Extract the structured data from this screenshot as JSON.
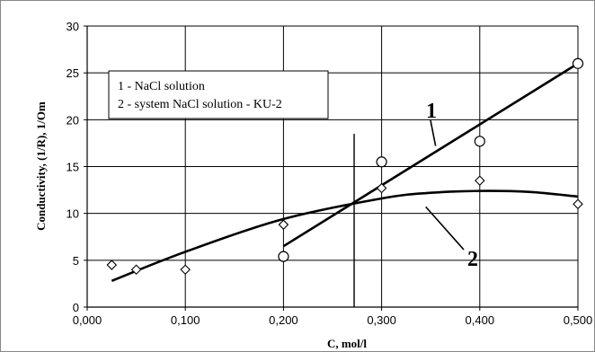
{
  "chart_data": {
    "type": "scatter",
    "title": "",
    "xlabel": "C, mol/l",
    "ylabel": "Conductivity, (1/R), 1/Om",
    "xlim": [
      0,
      0.5
    ],
    "ylim": [
      0,
      30
    ],
    "x_ticks": [
      "0,000",
      "0,100",
      "0,200",
      "0,300",
      "0,400",
      "0,500"
    ],
    "y_ticks": [
      "0",
      "5",
      "10",
      "15",
      "20",
      "25",
      "30"
    ],
    "grid": true,
    "legend_placement": "top-left",
    "legend": [
      "1 - NaCl solution",
      "2 - system NaCl solution - KU-2"
    ],
    "series": [
      {
        "name": "1 - NaCl solution",
        "marker": "circle",
        "points": [
          [
            0.2,
            5.4
          ],
          [
            0.3,
            15.5
          ],
          [
            0.4,
            17.7
          ],
          [
            0.5,
            26.0
          ]
        ],
        "fit": {
          "type": "linear",
          "from": [
            0.2,
            6.5
          ],
          "to": [
            0.5,
            26.0
          ]
        }
      },
      {
        "name": "2 - system NaCl solution - KU-2",
        "marker": "diamond",
        "points": [
          [
            0.025,
            4.5
          ],
          [
            0.05,
            4.0
          ],
          [
            0.1,
            4.0
          ],
          [
            0.2,
            8.8
          ],
          [
            0.3,
            12.7
          ],
          [
            0.4,
            13.5
          ],
          [
            0.5,
            11.0
          ]
        ],
        "fit": {
          "type": "polynomial",
          "curve": [
            [
              0.025,
              2.8
            ],
            [
              0.1,
              5.9
            ],
            [
              0.2,
              9.4
            ],
            [
              0.3,
              11.6
            ],
            [
              0.35,
              12.2
            ],
            [
              0.4,
              12.4
            ],
            [
              0.45,
              12.3
            ],
            [
              0.5,
              11.8
            ]
          ]
        }
      }
    ],
    "vertical_line_x": 0.272,
    "vertical_line_y": [
      0,
      18.5
    ],
    "curve_labels": [
      {
        "text": "1",
        "callout_end": [
          0.355,
          17.2
        ]
      },
      {
        "text": "2",
        "callout_end": [
          0.345,
          10.7
        ]
      }
    ]
  }
}
